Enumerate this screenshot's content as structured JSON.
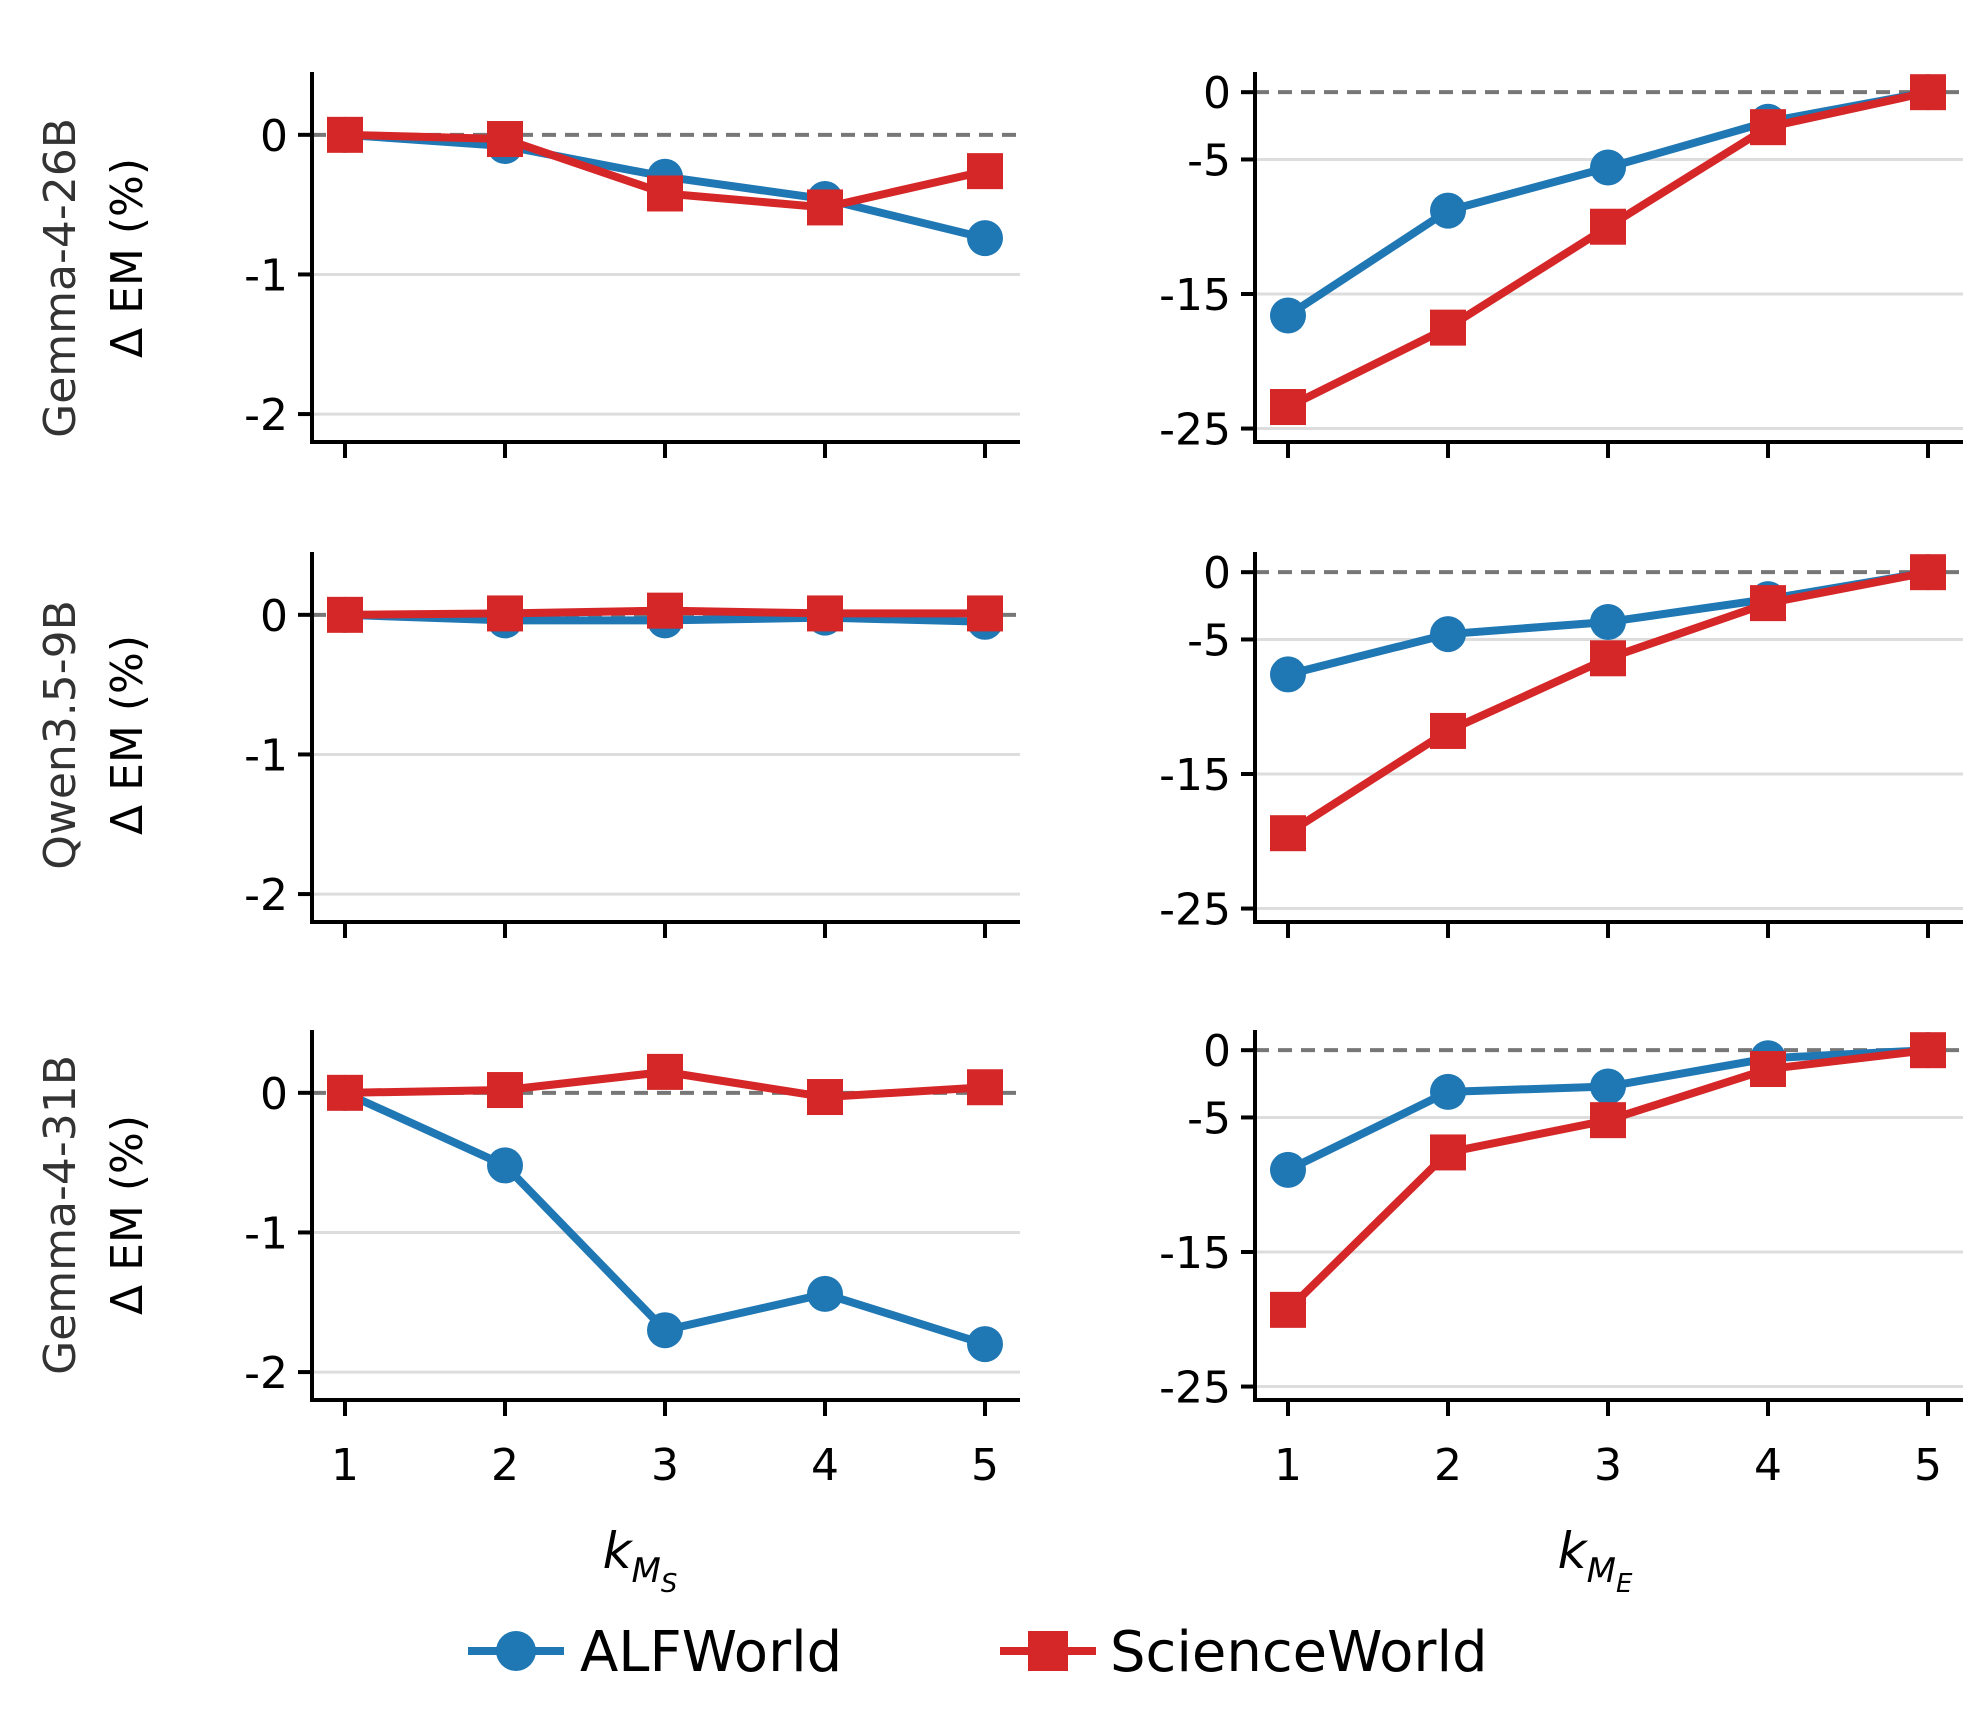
{
  "colors": {
    "ALFWorld": "#1f77b4",
    "ScienceWorld": "#d62728",
    "grid": "#dddddd",
    "zero_line": "#777777",
    "axis": "#000000"
  },
  "legend": {
    "placement": "bottom-center",
    "items": [
      {
        "label": "ALFWorld",
        "marker": "circle",
        "color": "#1f77b4"
      },
      {
        "label": "ScienceWorld",
        "marker": "square",
        "color": "#d62728"
      }
    ]
  },
  "rows": [
    {
      "model": "Gemma-4-26B",
      "ylabel": "Δ EM (%)"
    },
    {
      "model": "Qwen3.5-9B",
      "ylabel": "Δ EM (%)"
    },
    {
      "model": "Gemma-4-31B",
      "ylabel": "Δ EM (%)"
    }
  ],
  "x_axes": {
    "left": {
      "ticks": [
        "1",
        "2",
        "3",
        "4",
        "5"
      ],
      "label_base": "k",
      "label_sub": "M",
      "label_subsub": "S"
    },
    "right": {
      "ticks": [
        "1",
        "2",
        "3",
        "4",
        "5"
      ],
      "label_base": "k",
      "label_sub": "M",
      "label_subsub": "E"
    }
  },
  "chart_data": [
    {
      "type": "line",
      "row": 0,
      "col": 0,
      "x": [
        1,
        2,
        3,
        4,
        5
      ],
      "ylim": [
        -2.2,
        0.45
      ],
      "yticks": [
        0,
        -1,
        -2
      ],
      "ytick_labels": [
        "0",
        "-1",
        "-2"
      ],
      "grid": true,
      "series": [
        {
          "name": "ALFWorld",
          "values": [
            0,
            -0.08,
            -0.3,
            -0.46,
            -0.74
          ]
        },
        {
          "name": "ScienceWorld",
          "values": [
            0,
            -0.03,
            -0.42,
            -0.52,
            -0.26
          ]
        }
      ]
    },
    {
      "type": "line",
      "row": 0,
      "col": 1,
      "x": [
        1,
        2,
        3,
        4,
        5
      ],
      "ylim": [
        -26,
        1.5
      ],
      "yticks": [
        0,
        -5,
        -15,
        -25
      ],
      "ytick_labels": [
        "0",
        "-5",
        "-15",
        "-25"
      ],
      "grid": true,
      "series": [
        {
          "name": "ALFWorld",
          "values": [
            -16.6,
            -8.8,
            -5.6,
            -2.2,
            0
          ]
        },
        {
          "name": "ScienceWorld",
          "values": [
            -23.4,
            -17.5,
            -10,
            -2.6,
            0
          ]
        }
      ]
    },
    {
      "type": "line",
      "row": 1,
      "col": 0,
      "x": [
        1,
        2,
        3,
        4,
        5
      ],
      "ylim": [
        -2.2,
        0.45
      ],
      "yticks": [
        0,
        -1,
        -2
      ],
      "ytick_labels": [
        "0",
        "-1",
        "-2"
      ],
      "grid": true,
      "series": [
        {
          "name": "ALFWorld",
          "values": [
            0,
            -0.04,
            -0.04,
            -0.02,
            -0.05
          ]
        },
        {
          "name": "ScienceWorld",
          "values": [
            0,
            0.01,
            0.03,
            0.01,
            0.01
          ]
        }
      ]
    },
    {
      "type": "line",
      "row": 1,
      "col": 1,
      "x": [
        1,
        2,
        3,
        4,
        5
      ],
      "ylim": [
        -26,
        1.5
      ],
      "yticks": [
        0,
        -5,
        -15,
        -25
      ],
      "ytick_labels": [
        "0",
        "-5",
        "-15",
        "-25"
      ],
      "grid": true,
      "series": [
        {
          "name": "ALFWorld",
          "values": [
            -7.6,
            -4.6,
            -3.7,
            -2.0,
            0
          ]
        },
        {
          "name": "ScienceWorld",
          "values": [
            -19.4,
            -11.8,
            -6.4,
            -2.3,
            0
          ]
        }
      ]
    },
    {
      "type": "line",
      "row": 2,
      "col": 0,
      "x": [
        1,
        2,
        3,
        4,
        5
      ],
      "ylim": [
        -2.2,
        0.45
      ],
      "yticks": [
        0,
        -1,
        -2
      ],
      "ytick_labels": [
        "0",
        "-1",
        "-2"
      ],
      "grid": true,
      "series": [
        {
          "name": "ALFWorld",
          "values": [
            0,
            -0.52,
            -1.7,
            -1.44,
            -1.8
          ]
        },
        {
          "name": "ScienceWorld",
          "values": [
            0,
            0.02,
            0.15,
            -0.03,
            0.04
          ]
        }
      ]
    },
    {
      "type": "line",
      "row": 2,
      "col": 1,
      "x": [
        1,
        2,
        3,
        4,
        5
      ],
      "ylim": [
        -26,
        1.5
      ],
      "yticks": [
        0,
        -5,
        -15,
        -25
      ],
      "ytick_labels": [
        "0",
        "-5",
        "-15",
        "-25"
      ],
      "grid": true,
      "series": [
        {
          "name": "ALFWorld",
          "values": [
            -8.9,
            -3.1,
            -2.7,
            -0.6,
            0
          ]
        },
        {
          "name": "ScienceWorld",
          "values": [
            -19.3,
            -7.6,
            -5.2,
            -1.4,
            0
          ]
        }
      ]
    }
  ]
}
